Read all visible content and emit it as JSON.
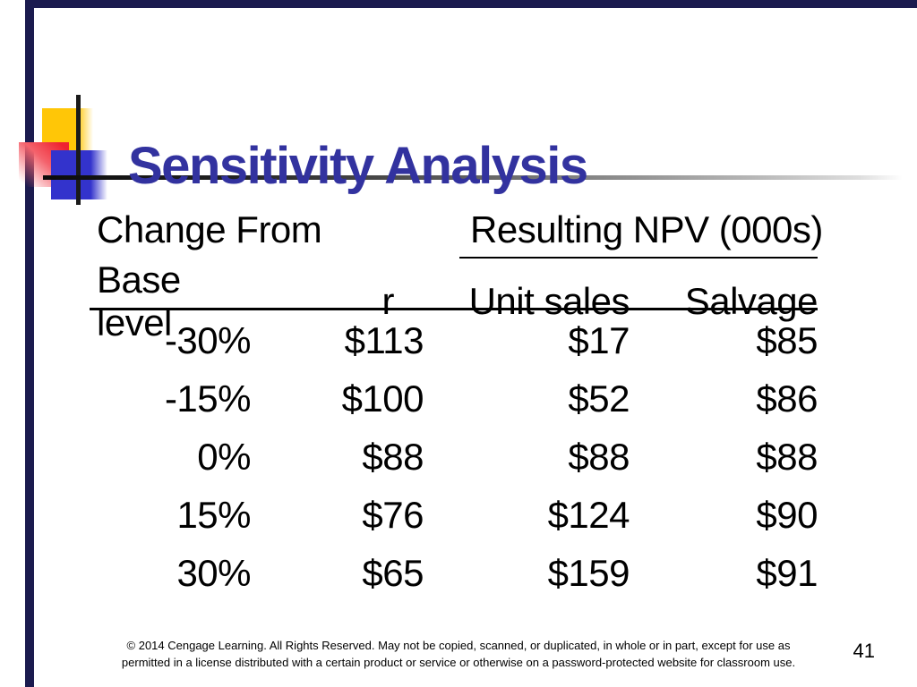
{
  "slide": {
    "title": "Sensitivity Analysis",
    "page_number": "41",
    "footer": {
      "line1": "© 2014 Cengage Learning. All Rights Reserved. May not be copied, scanned, or duplicated, in whole or in part, except for use as",
      "line2": "permitted in a license distributed with a certain product or service or otherwise on a password-protected website for classroom use."
    },
    "colors": {
      "title_text": "#32329f",
      "frame_bar": "#1b1b4f",
      "accent_yellow": "#ffc607",
      "accent_blue": "#3333cc",
      "accent_red": "#ef2330"
    }
  },
  "table": {
    "group_header_left": "Change From",
    "group_header_right": "Resulting NPV (000s)",
    "columns": [
      "Base level",
      "r",
      "Unit sales",
      "Salvage"
    ],
    "rows": [
      [
        "-30%",
        "$113",
        "$17",
        "$85"
      ],
      [
        "-15%",
        "$100",
        "$52",
        "$86"
      ],
      [
        "0%",
        "$88",
        "$88",
        "$88"
      ],
      [
        "15%",
        "$76",
        "$124",
        "$90"
      ],
      [
        "30%",
        "$65",
        "$159",
        "$91"
      ]
    ]
  },
  "chart_data": {
    "type": "table",
    "title": "Sensitivity Analysis",
    "column_groups": [
      "Change From",
      "Resulting NPV (000s)"
    ],
    "columns": [
      "Base level",
      "r",
      "Unit sales",
      "Salvage"
    ],
    "rows": [
      {
        "change_from_base_level": "-30%",
        "r": 113,
        "unit_sales": 17,
        "salvage": 85
      },
      {
        "change_from_base_level": "-15%",
        "r": 100,
        "unit_sales": 52,
        "salvage": 86
      },
      {
        "change_from_base_level": "0%",
        "r": 88,
        "unit_sales": 88,
        "salvage": 88
      },
      {
        "change_from_base_level": "15%",
        "r": 76,
        "unit_sales": 124,
        "salvage": 90
      },
      {
        "change_from_base_level": "30%",
        "r": 65,
        "unit_sales": 159,
        "salvage": 91
      }
    ]
  }
}
